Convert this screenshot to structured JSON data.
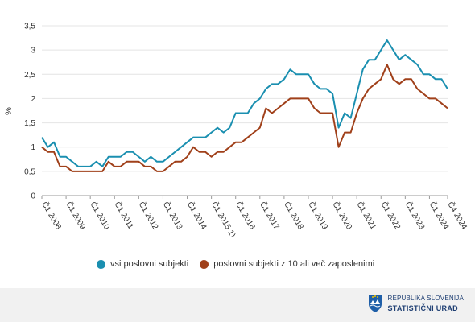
{
  "chart_data": {
    "type": "line",
    "ylabel": "%",
    "ylim": [
      0,
      3.5
    ],
    "yticks": [
      "0",
      "0,5",
      "1",
      "1,5",
      "2",
      "2,5",
      "3",
      "3,5"
    ],
    "xticks": [
      "Č1 2008",
      "Č1 2009",
      "Č1 2010",
      "Č1 2011",
      "Č1 2012",
      "Č1 2013",
      "Č1 2014",
      "Č1 2015 1)",
      "Č1 2016",
      "Č1 2017",
      "Č1 2018",
      "Č1 2019",
      "Č1 2020",
      "Č1 2021",
      "Č1 2022",
      "Č1 2023",
      "Č1 2024",
      "Č4 2024"
    ],
    "grid": true,
    "legend_position": "bottom",
    "series": [
      {
        "name": "vsi poslovni subjekti",
        "color": "#1a8fb0",
        "values": [
          1.2,
          1.0,
          1.1,
          0.8,
          0.8,
          0.7,
          0.6,
          0.6,
          0.6,
          0.7,
          0.6,
          0.8,
          0.8,
          0.8,
          0.9,
          0.9,
          0.8,
          0.7,
          0.8,
          0.7,
          0.7,
          0.8,
          0.9,
          1.0,
          1.1,
          1.2,
          1.2,
          1.2,
          1.3,
          1.4,
          1.3,
          1.4,
          1.7,
          1.7,
          1.7,
          1.9,
          2.0,
          2.2,
          2.3,
          2.3,
          2.4,
          2.6,
          2.5,
          2.5,
          2.5,
          2.3,
          2.2,
          2.2,
          2.1,
          1.4,
          1.7,
          1.6,
          2.1,
          2.6,
          2.8,
          2.8,
          3.0,
          3.2,
          3.0,
          2.8,
          2.9,
          2.8,
          2.7,
          2.5,
          2.5,
          2.4,
          2.4,
          2.2
        ]
      },
      {
        "name": "poslovni subjekti z 10 ali več zaposlenimi",
        "color": "#a0401a",
        "values": [
          1.0,
          0.9,
          0.9,
          0.6,
          0.6,
          0.5,
          0.5,
          0.5,
          0.5,
          0.5,
          0.5,
          0.7,
          0.6,
          0.6,
          0.7,
          0.7,
          0.7,
          0.6,
          0.6,
          0.5,
          0.5,
          0.6,
          0.7,
          0.7,
          0.8,
          1.0,
          0.9,
          0.9,
          0.8,
          0.9,
          0.9,
          1.0,
          1.1,
          1.1,
          1.2,
          1.3,
          1.4,
          1.8,
          1.7,
          1.8,
          1.9,
          2.0,
          2.0,
          2.0,
          2.0,
          1.8,
          1.7,
          1.7,
          1.7,
          1.0,
          1.3,
          1.3,
          1.7,
          2.0,
          2.2,
          2.3,
          2.4,
          2.7,
          2.4,
          2.3,
          2.4,
          2.4,
          2.2,
          2.1,
          2.0,
          2.0,
          1.9,
          1.8
        ]
      }
    ]
  },
  "legend": {
    "item1": "vsi poslovni subjekti",
    "item2": "poslovni subjekti z 10 ali več zaposlenimi"
  },
  "footer": {
    "line1": "REPUBLIKA SLOVENIJA",
    "line2": "STATISTIČNI URAD"
  },
  "colors": {
    "series1": "#1a8fb0",
    "series2": "#a0401a",
    "grid": "#e4e4e4",
    "footer_bg": "#f1f1f1",
    "brand": "#1f3f73"
  }
}
